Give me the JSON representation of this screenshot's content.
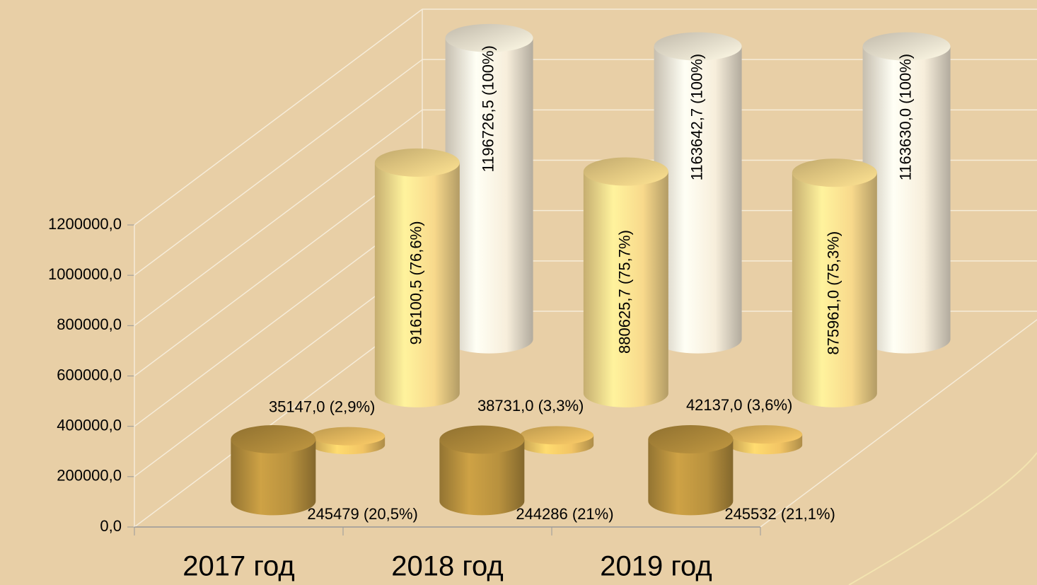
{
  "chart_data": {
    "type": "bar3d",
    "categories": [
      "2017 год",
      "2018 год",
      "2019 год"
    ],
    "series": [
      {
        "color": "#b8913e",
        "values": [
          245479,
          244286,
          245532
        ],
        "value_labels": [
          "245479 (20,5%)",
          "244286 (21%)",
          "245532 (21,1%)"
        ]
      },
      {
        "color": "#f2c464",
        "values": [
          35147.0,
          38731.0,
          42137.0
        ],
        "value_labels": [
          "35147,0  (2,9%)",
          "38731,0 (3,3%)",
          "42137,0 (3,6%)"
        ]
      },
      {
        "color": "#f8d98c",
        "values": [
          916100.5,
          880625.7,
          875961.0
        ],
        "value_labels": [
          "916100,5 (76,6%)",
          "880625,7 (75,7%)",
          "875961,0 (75,3%)"
        ]
      },
      {
        "color": "#f7eedb",
        "values": [
          1196726.5,
          1163642.7,
          1163630.0
        ],
        "value_labels": [
          "1196726,5 (100%)",
          "1163642,7 (100%)",
          "1163630,0 (100%)"
        ]
      }
    ],
    "ylim": [
      0,
      1200000
    ],
    "yticks": [
      {
        "value": 0,
        "label": "0,0"
      },
      {
        "value": 200000,
        "label": "200000,0"
      },
      {
        "value": 400000,
        "label": "400000,0"
      },
      {
        "value": 600000,
        "label": "600000,0"
      },
      {
        "value": 800000,
        "label": "800000,0"
      },
      {
        "value": 1000000,
        "label": "1000000,0"
      },
      {
        "value": 1200000,
        "label": "1200000,0"
      }
    ],
    "grid": true
  }
}
